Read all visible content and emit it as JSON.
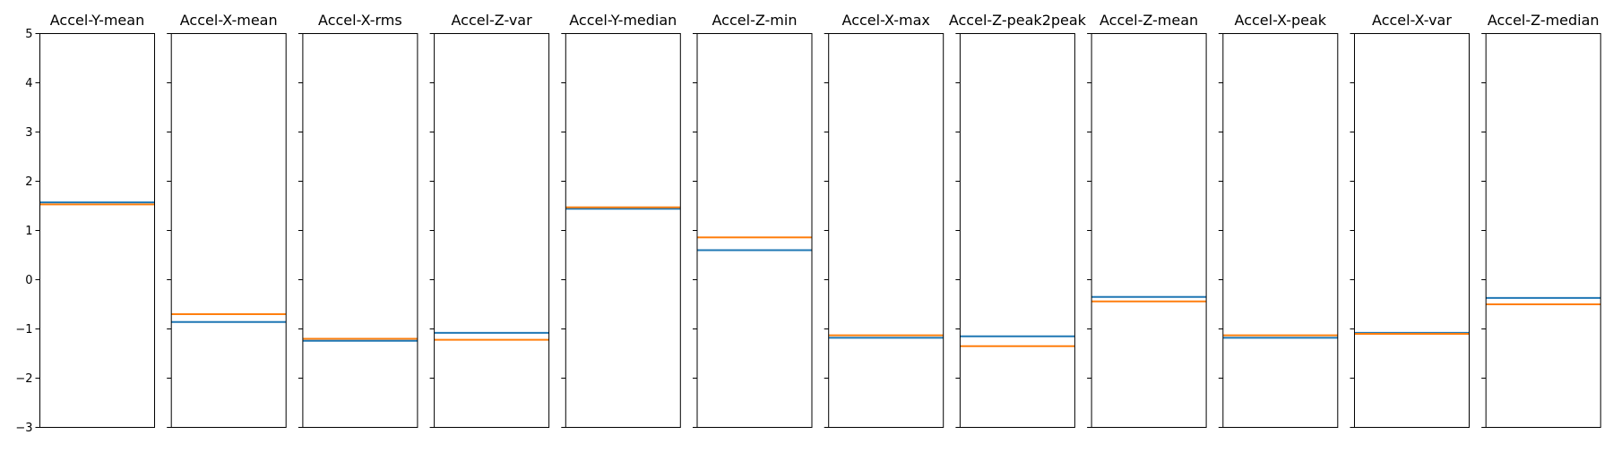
{
  "chart_data": {
    "type": "line",
    "panel_titles": [
      "Accel-Y-mean",
      "Accel-X-mean",
      "Accel-X-rms",
      "Accel-Z-var",
      "Accel-Y-median",
      "Accel-Z-min",
      "Accel-X-max",
      "Accel-Z-peak2peak",
      "Accel-Z-mean",
      "Accel-X-peak",
      "Accel-X-var",
      "Accel-Z-median"
    ],
    "series": [
      {
        "color": "#1f77b4",
        "values": [
          1.57,
          -0.86,
          -1.24,
          -1.08,
          1.44,
          0.6,
          -1.18,
          -1.15,
          -0.35,
          -1.18,
          -1.08,
          -0.37
        ]
      },
      {
        "color": "#ff7f0e",
        "values": [
          1.53,
          -0.7,
          -1.2,
          -1.22,
          1.47,
          0.86,
          -1.13,
          -1.35,
          -0.44,
          -1.13,
          -1.1,
          -0.5
        ]
      }
    ],
    "ylim": [
      -3,
      5
    ],
    "yticks": [
      -3,
      -2,
      -1,
      0,
      1,
      2,
      3,
      4,
      5
    ],
    "ytick_labels": [
      "−3",
      "−2",
      "−1",
      "0",
      "1",
      "2",
      "3",
      "4",
      "5"
    ],
    "shared_y": true,
    "grid": false
  }
}
